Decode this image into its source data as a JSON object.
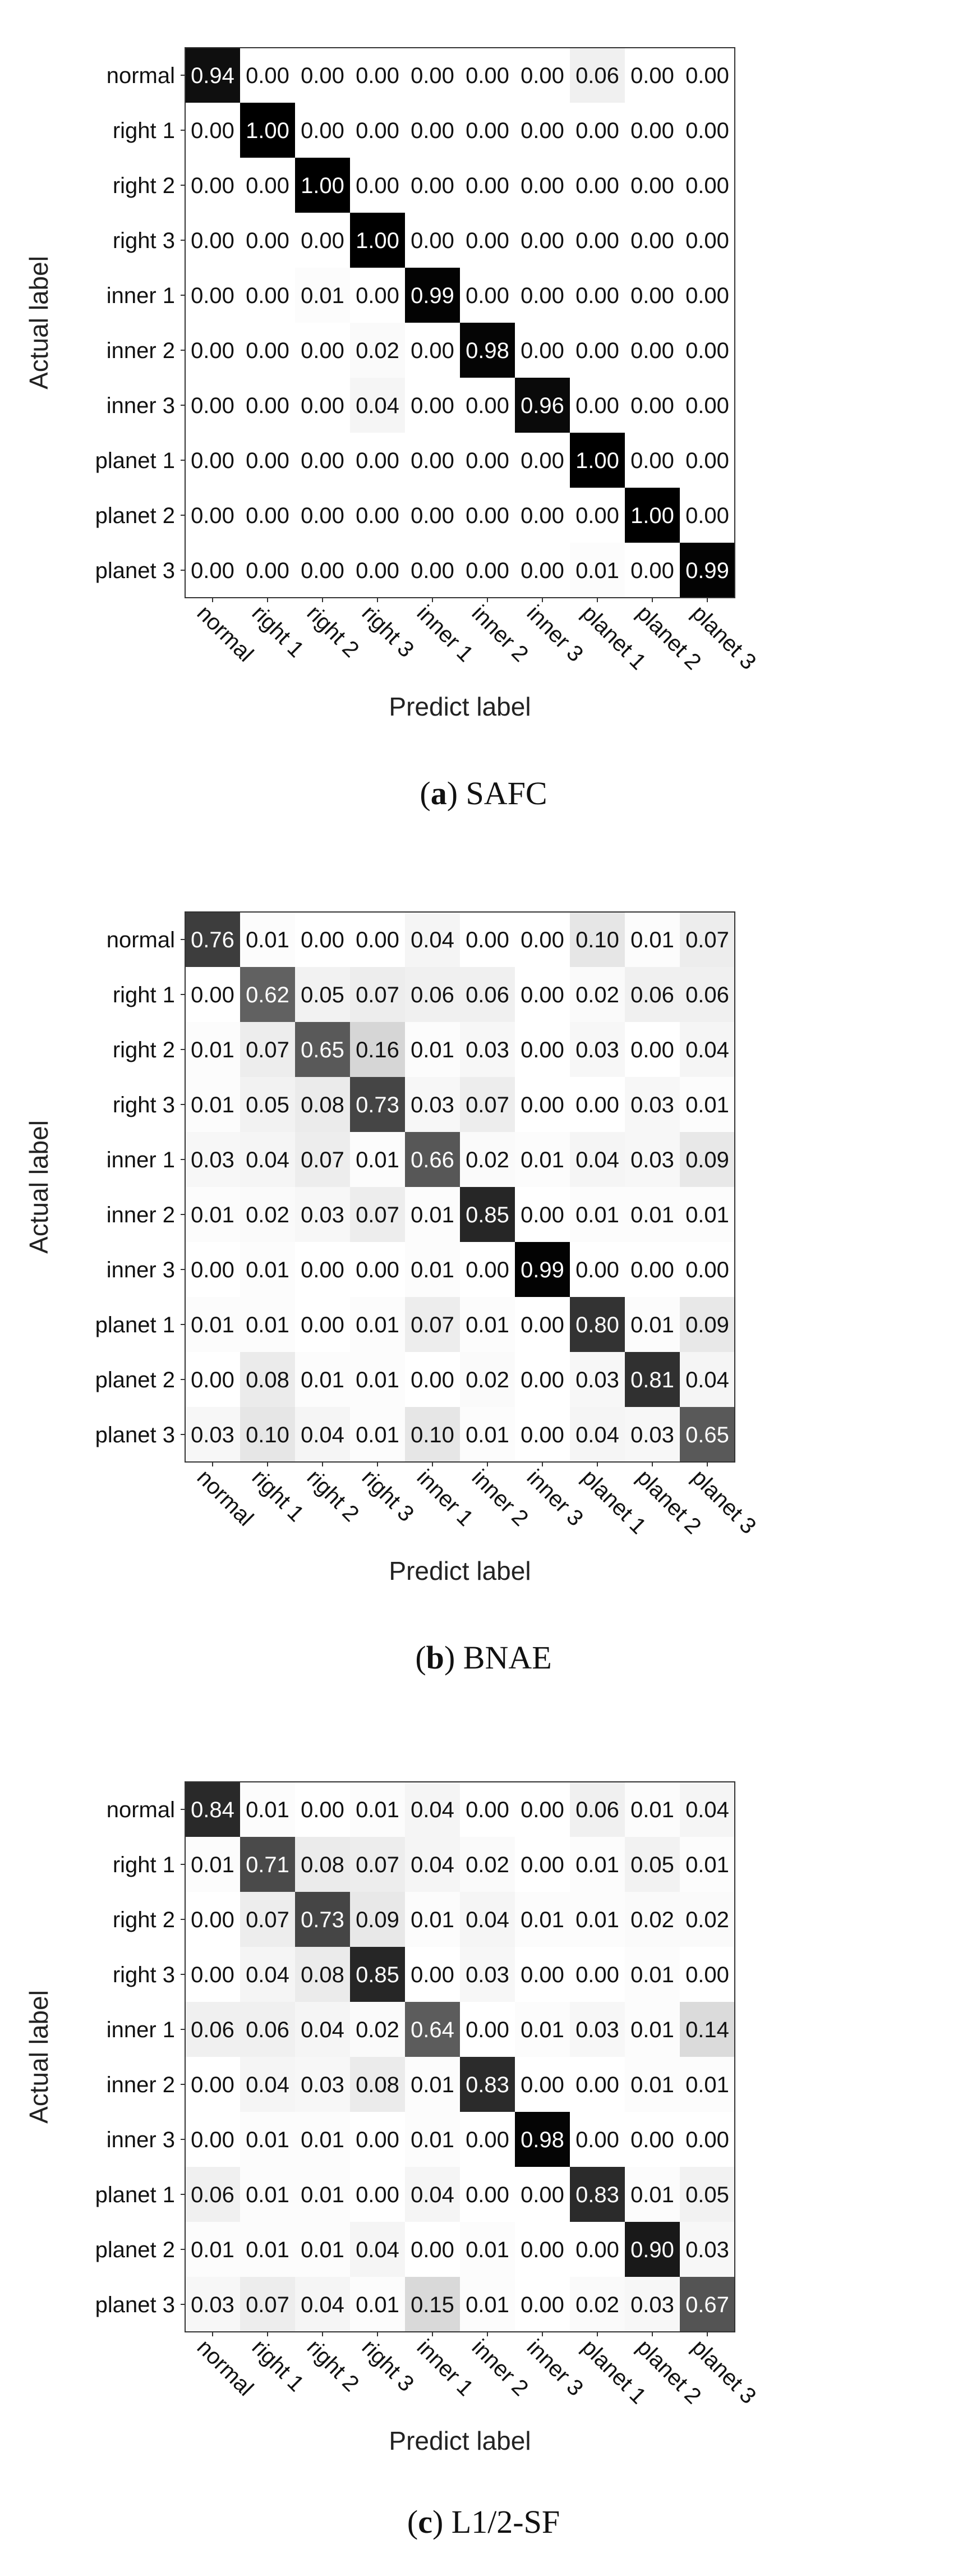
{
  "chart_data": [
    {
      "type": "heatmap",
      "xlabel": "Predict label",
      "ylabel": "Actual label",
      "labels": [
        "normal",
        "right 1",
        "right 2",
        "right 3",
        "inner 1",
        "inner 2",
        "inner 3",
        "planet 1",
        "planet 2",
        "planet 3"
      ],
      "values": [
        [
          0.94,
          0.0,
          0.0,
          0.0,
          0.0,
          0.0,
          0.0,
          0.06,
          0.0,
          0.0
        ],
        [
          0.0,
          1.0,
          0.0,
          0.0,
          0.0,
          0.0,
          0.0,
          0.0,
          0.0,
          0.0
        ],
        [
          0.0,
          0.0,
          1.0,
          0.0,
          0.0,
          0.0,
          0.0,
          0.0,
          0.0,
          0.0
        ],
        [
          0.0,
          0.0,
          0.0,
          1.0,
          0.0,
          0.0,
          0.0,
          0.0,
          0.0,
          0.0
        ],
        [
          0.0,
          0.0,
          0.01,
          0.0,
          0.99,
          0.0,
          0.0,
          0.0,
          0.0,
          0.0
        ],
        [
          0.0,
          0.0,
          0.0,
          0.02,
          0.0,
          0.98,
          0.0,
          0.0,
          0.0,
          0.0
        ],
        [
          0.0,
          0.0,
          0.0,
          0.04,
          0.0,
          0.0,
          0.96,
          0.0,
          0.0,
          0.0
        ],
        [
          0.0,
          0.0,
          0.0,
          0.0,
          0.0,
          0.0,
          0.0,
          1.0,
          0.0,
          0.0
        ],
        [
          0.0,
          0.0,
          0.0,
          0.0,
          0.0,
          0.0,
          0.0,
          0.0,
          1.0,
          0.0
        ],
        [
          0.0,
          0.0,
          0.0,
          0.0,
          0.0,
          0.0,
          0.0,
          0.01,
          0.0,
          0.99
        ]
      ],
      "caption_letter": "a",
      "caption_text": "SAFC"
    },
    {
      "type": "heatmap",
      "xlabel": "Predict label",
      "ylabel": "Actual label",
      "labels": [
        "normal",
        "right 1",
        "right 2",
        "right 3",
        "inner 1",
        "inner 2",
        "inner 3",
        "planet 1",
        "planet 2",
        "planet 3"
      ],
      "values": [
        [
          0.76,
          0.01,
          0.0,
          0.0,
          0.04,
          0.0,
          0.0,
          0.1,
          0.01,
          0.07
        ],
        [
          0.0,
          0.62,
          0.05,
          0.07,
          0.06,
          0.06,
          0.0,
          0.02,
          0.06,
          0.06
        ],
        [
          0.01,
          0.07,
          0.65,
          0.16,
          0.01,
          0.03,
          0.0,
          0.03,
          0.0,
          0.04
        ],
        [
          0.01,
          0.05,
          0.08,
          0.73,
          0.03,
          0.07,
          0.0,
          0.0,
          0.03,
          0.01
        ],
        [
          0.03,
          0.04,
          0.07,
          0.01,
          0.66,
          0.02,
          0.01,
          0.04,
          0.03,
          0.09
        ],
        [
          0.01,
          0.02,
          0.03,
          0.07,
          0.01,
          0.85,
          0.0,
          0.01,
          0.01,
          0.01
        ],
        [
          0.0,
          0.01,
          0.0,
          0.0,
          0.01,
          0.0,
          0.99,
          0.0,
          0.0,
          0.0
        ],
        [
          0.01,
          0.01,
          0.0,
          0.01,
          0.07,
          0.01,
          0.0,
          0.8,
          0.01,
          0.09
        ],
        [
          0.0,
          0.08,
          0.01,
          0.01,
          0.0,
          0.02,
          0.0,
          0.03,
          0.81,
          0.04
        ],
        [
          0.03,
          0.1,
          0.04,
          0.01,
          0.1,
          0.01,
          0.0,
          0.04,
          0.03,
          0.65
        ]
      ],
      "caption_letter": "b",
      "caption_text": "BNAE"
    },
    {
      "type": "heatmap",
      "xlabel": "Predict label",
      "ylabel": "Actual label",
      "labels": [
        "normal",
        "right 1",
        "right 2",
        "right 3",
        "inner 1",
        "inner 2",
        "inner 3",
        "planet 1",
        "planet 2",
        "planet 3"
      ],
      "values": [
        [
          0.84,
          0.01,
          0.0,
          0.01,
          0.04,
          0.0,
          0.0,
          0.06,
          0.01,
          0.04
        ],
        [
          0.01,
          0.71,
          0.08,
          0.07,
          0.04,
          0.02,
          0.0,
          0.01,
          0.05,
          0.01
        ],
        [
          0.0,
          0.07,
          0.73,
          0.09,
          0.01,
          0.04,
          0.01,
          0.01,
          0.02,
          0.02
        ],
        [
          0.0,
          0.04,
          0.08,
          0.85,
          0.0,
          0.03,
          0.0,
          0.0,
          0.01,
          0.0
        ],
        [
          0.06,
          0.06,
          0.04,
          0.02,
          0.64,
          0.0,
          0.01,
          0.03,
          0.01,
          0.14
        ],
        [
          0.0,
          0.04,
          0.03,
          0.08,
          0.01,
          0.83,
          0.0,
          0.0,
          0.01,
          0.01
        ],
        [
          0.0,
          0.01,
          0.01,
          0.0,
          0.01,
          0.0,
          0.98,
          0.0,
          0.0,
          0.0
        ],
        [
          0.06,
          0.01,
          0.01,
          0.0,
          0.04,
          0.0,
          0.0,
          0.83,
          0.01,
          0.05
        ],
        [
          0.01,
          0.01,
          0.01,
          0.04,
          0.0,
          0.01,
          0.0,
          0.0,
          0.9,
          0.03
        ],
        [
          0.03,
          0.07,
          0.04,
          0.01,
          0.15,
          0.01,
          0.0,
          0.02,
          0.03,
          0.67
        ]
      ],
      "caption_letter": "c",
      "caption_text": "L1/2-SF"
    }
  ]
}
